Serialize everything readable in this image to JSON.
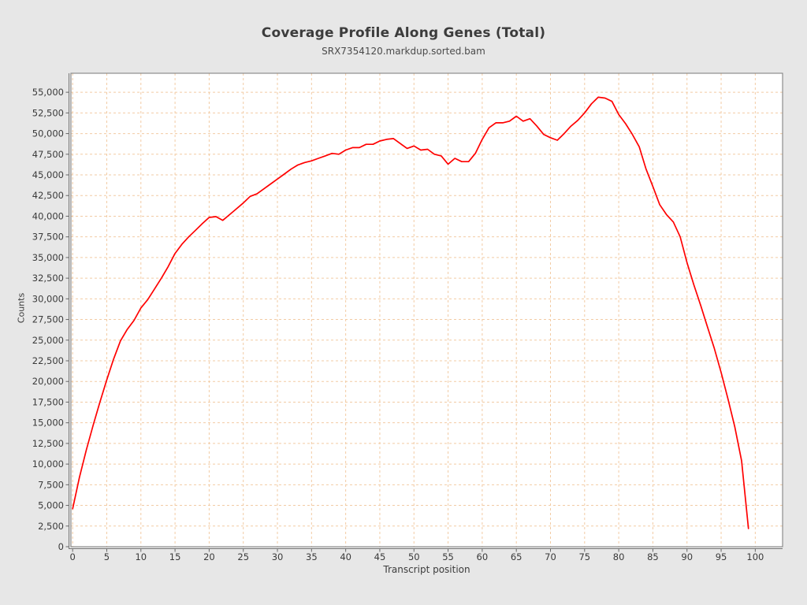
{
  "title": "Coverage Profile Along Genes (Total)",
  "subtitle": "SRX7354120.markdup.sorted.bam",
  "chart_data": {
    "type": "line",
    "title": "Coverage Profile Along Genes (Total)",
    "subtitle": "SRX7354120.markdup.sorted.bam",
    "xlabel": "Transcript position",
    "ylabel": "Counts",
    "legend_position": "none",
    "grid": "dashed",
    "grid_color": "#f2cba4",
    "plot_bg_color": "#ffffff",
    "page_bg_color": "#e7e7e7",
    "axis_border_color": "#787878",
    "xlim": [
      -0.25,
      104
    ],
    "ylim": [
      0,
      57300
    ],
    "x_ticks": [
      0,
      5,
      10,
      15,
      20,
      25,
      30,
      35,
      40,
      45,
      50,
      55,
      60,
      65,
      70,
      75,
      80,
      85,
      90,
      95,
      100
    ],
    "y_ticks": [
      0,
      2500,
      5000,
      7500,
      10000,
      12500,
      15000,
      17500,
      20000,
      22500,
      25000,
      27500,
      30000,
      32500,
      35000,
      37500,
      40000,
      42500,
      45000,
      47500,
      50000,
      52500,
      55000
    ],
    "x_start": 0,
    "x_step": 1,
    "series": [
      {
        "name": "SRX7354120.markdup.sorted.bam coverage",
        "color": "#ff0000",
        "values": [
          4600,
          8400,
          11700,
          14700,
          17500,
          20200,
          22700,
          24900,
          26300,
          27400,
          28900,
          29900,
          31200,
          32500,
          33900,
          35500,
          36600,
          37500,
          38300,
          39100,
          39850,
          39950,
          39500,
          40200,
          40900,
          41600,
          42400,
          42700,
          43300,
          43900,
          44500,
          45100,
          45700,
          46200,
          46500,
          46700,
          47000,
          47300,
          47600,
          47500,
          48000,
          48300,
          48300,
          48700,
          48700,
          49100,
          49300,
          49400,
          48800,
          48200,
          48500,
          48000,
          48100,
          47500,
          47300,
          46300,
          47000,
          46600,
          46600,
          47600,
          49300,
          50700,
          51300,
          51300,
          51500,
          52100,
          51500,
          51800,
          50900,
          49900,
          49500,
          49200,
          50000,
          50900,
          51600,
          52500,
          53600,
          54400,
          54300,
          53900,
          52300,
          51200,
          49900,
          48400,
          45700,
          43600,
          41400,
          40200,
          39300,
          37500,
          34400,
          31700,
          29200,
          26600,
          24000,
          21100,
          17900,
          14500,
          10400,
          2200
        ]
      }
    ]
  }
}
